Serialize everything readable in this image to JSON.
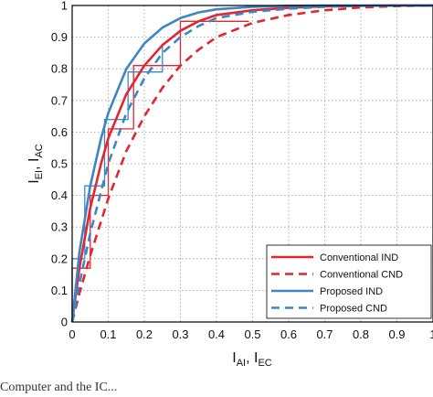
{
  "chart_data": {
    "type": "line",
    "xlabel": {
      "main": "I",
      "sub1": "AI",
      "sep": ", I",
      "sub2": "EC"
    },
    "ylabel": {
      "main": "I",
      "sub1": "EI",
      "sep": ", I",
      "sub2": "AC"
    },
    "xlim": [
      0,
      1
    ],
    "ylim": [
      0,
      1
    ],
    "grid": "dotted",
    "legend_position": "bottom-right",
    "x_ticks": [
      "0",
      "0.1",
      "0.2",
      "0.3",
      "0.4",
      "0.5",
      "0.6",
      "0.7",
      "0.8",
      "0.9",
      "1"
    ],
    "y_ticks": [
      "0",
      "0.1",
      "0.2",
      "0.3",
      "0.4",
      "0.5",
      "0.6",
      "0.7",
      "0.8",
      "0.9",
      "1"
    ],
    "series": [
      {
        "name": "Conventional IND",
        "color": "#e0262f",
        "dash": "solid",
        "x": [
          0,
          0.02,
          0.05,
          0.08,
          0.1,
          0.15,
          0.2,
          0.25,
          0.3,
          0.35,
          0.4,
          0.5,
          0.6,
          0.7,
          0.8,
          0.9,
          1.0
        ],
        "y": [
          0,
          0.17,
          0.36,
          0.5,
          0.58,
          0.72,
          0.81,
          0.875,
          0.92,
          0.95,
          0.97,
          0.985,
          0.993,
          0.997,
          0.999,
          1.0,
          1.0
        ]
      },
      {
        "name": "Conventional CND",
        "color": "#e0262f",
        "dash": "dashed",
        "x": [
          0,
          0.02,
          0.05,
          0.1,
          0.15,
          0.2,
          0.25,
          0.3,
          0.35,
          0.4,
          0.5,
          0.6,
          0.7,
          0.8,
          0.9,
          1.0
        ],
        "y": [
          0,
          0.09,
          0.21,
          0.39,
          0.54,
          0.65,
          0.74,
          0.81,
          0.86,
          0.9,
          0.945,
          0.97,
          0.985,
          0.994,
          0.998,
          1.0
        ]
      },
      {
        "name": "Proposed IND",
        "color": "#3d86c6",
        "dash": "solid",
        "x": [
          0,
          0.02,
          0.05,
          0.08,
          0.1,
          0.15,
          0.2,
          0.25,
          0.3,
          0.35,
          0.4,
          0.5,
          0.6,
          0.7,
          0.8,
          0.9,
          1.0
        ],
        "y": [
          0,
          0.22,
          0.43,
          0.58,
          0.66,
          0.8,
          0.88,
          0.93,
          0.96,
          0.978,
          0.988,
          0.996,
          0.999,
          1.0,
          1.0,
          1.0,
          1.0
        ]
      },
      {
        "name": "Proposed CND",
        "color": "#3d86c6",
        "dash": "dashed",
        "x": [
          0,
          0.02,
          0.05,
          0.1,
          0.15,
          0.2,
          0.25,
          0.3,
          0.35,
          0.4,
          0.5,
          0.6,
          0.7,
          0.8,
          0.9,
          1.0
        ],
        "y": [
          0,
          0.12,
          0.28,
          0.5,
          0.66,
          0.77,
          0.85,
          0.9,
          0.935,
          0.96,
          0.98,
          0.99,
          0.996,
          0.999,
          1.0,
          1.0
        ]
      }
    ],
    "trajectories": [
      {
        "color": "#e0262f",
        "points": [
          [
            0,
            0
          ],
          [
            0,
            0.17
          ],
          [
            0.05,
            0.17
          ],
          [
            0.05,
            0.4
          ],
          [
            0.1,
            0.4
          ],
          [
            0.1,
            0.61
          ],
          [
            0.17,
            0.61
          ],
          [
            0.17,
            0.81
          ],
          [
            0.3,
            0.81
          ],
          [
            0.3,
            0.95
          ],
          [
            0.49,
            0.95
          ]
        ]
      },
      {
        "color": "#3d86c6",
        "points": [
          [
            0,
            0
          ],
          [
            0,
            0.2
          ],
          [
            0.035,
            0.2
          ],
          [
            0.035,
            0.43
          ],
          [
            0.09,
            0.43
          ],
          [
            0.09,
            0.64
          ],
          [
            0.155,
            0.64
          ],
          [
            0.155,
            0.79
          ],
          [
            0.25,
            0.79
          ],
          [
            0.25,
            0.88
          ]
        ]
      }
    ]
  },
  "caption_fragment": "Computer and the IC..."
}
